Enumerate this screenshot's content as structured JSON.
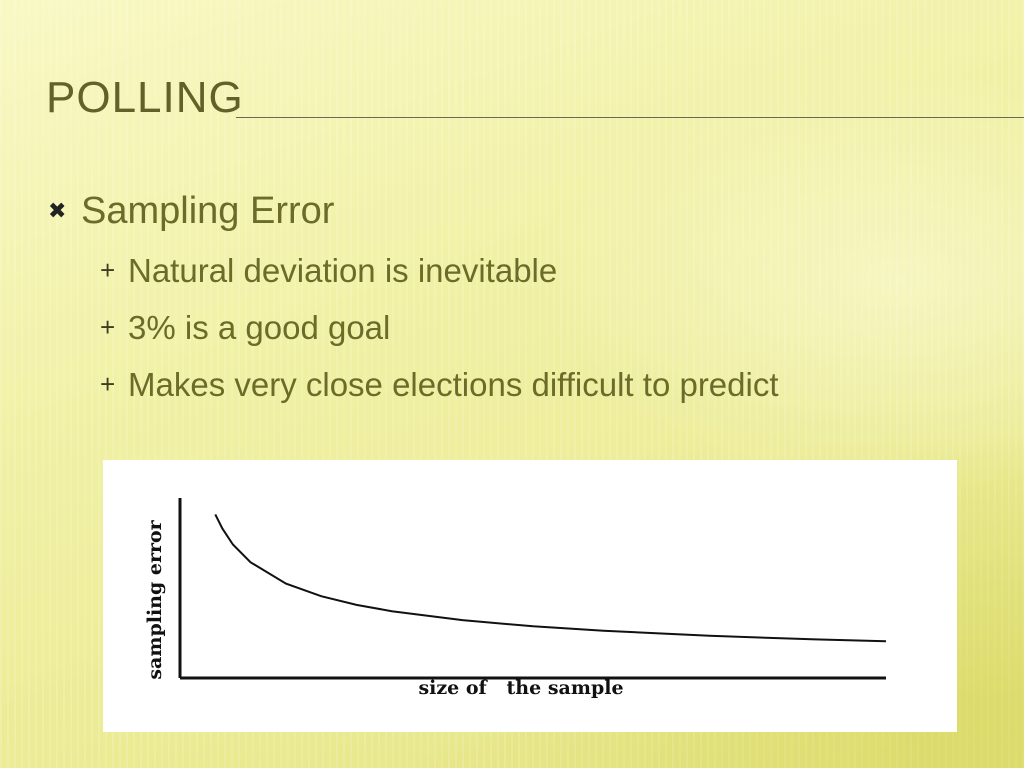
{
  "slide": {
    "title": "POLLING",
    "bullet_marker": "✖",
    "sub_marker": "+",
    "bullets": [
      {
        "text": "Sampling Error",
        "sub_bullets": [
          "Natural deviation is inevitable",
          "3% is a good goal",
          "Makes very close elections difficult to predict"
        ]
      }
    ]
  },
  "chart_data": {
    "type": "line",
    "title": "",
    "xlabel": "size of   the sample",
    "ylabel": "sampling error",
    "x": [
      1,
      1.2,
      1.5,
      2,
      3,
      4,
      5,
      6,
      8,
      10,
      12,
      15,
      18,
      20
    ],
    "series": [
      {
        "values": [
          1.0,
          0.913,
          0.816,
          0.707,
          0.577,
          0.5,
          0.447,
          0.408,
          0.354,
          0.316,
          0.289,
          0.258,
          0.236,
          0.224
        ]
      }
    ],
    "xlim": [
      0,
      20
    ],
    "ylim": [
      0,
      1.1
    ],
    "grid": false,
    "legend": "none",
    "colors": {
      "line": "#111111",
      "axes": "#111111"
    }
  }
}
